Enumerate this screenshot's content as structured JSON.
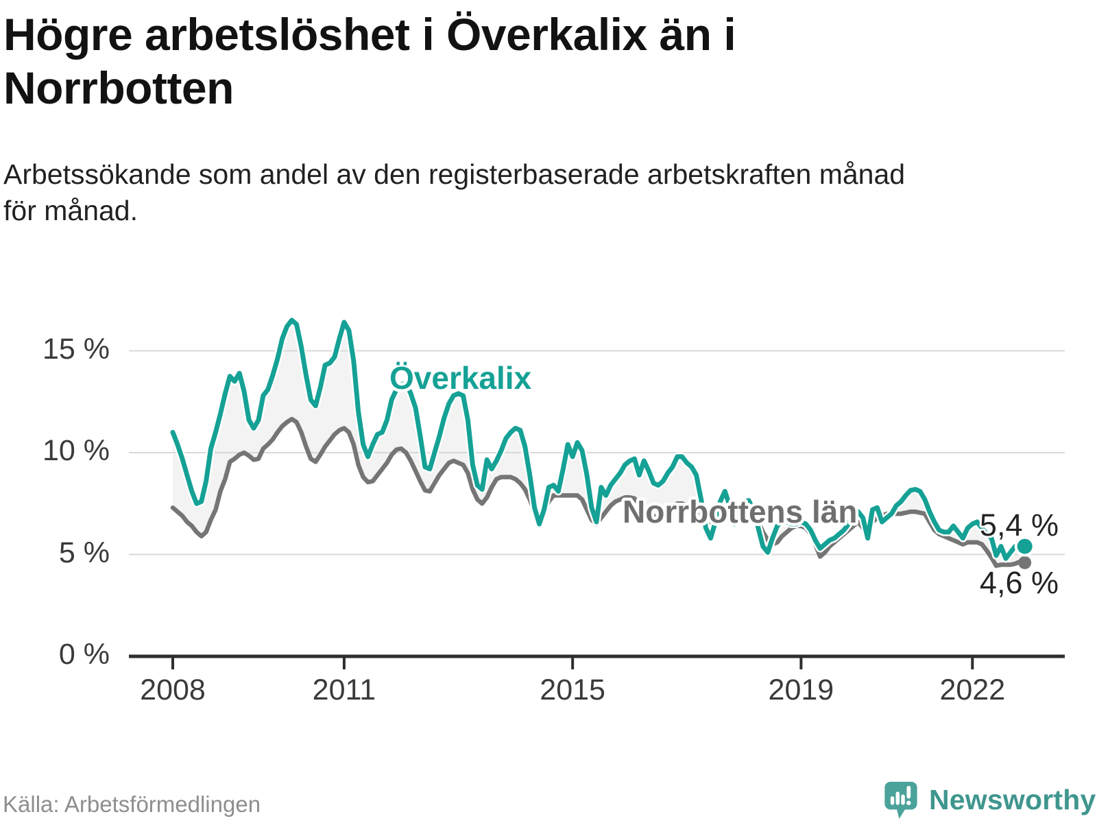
{
  "header": {
    "title": "Högre arbetslöshet i Överkalix än i\nNorrbotten",
    "subtitle": "Arbetssökande som andel av den registerbaserade arbetskraften månad\nför månad."
  },
  "footer": {
    "source": "Källa: Arbetsförmedlingen",
    "logo_text": "Newsworthy",
    "logo_icon": "speech-bubble-bar-chart-exclamation",
    "logo_icon_color": "#4aa29a",
    "logo_text_color": "#3f968e"
  },
  "chart_data": {
    "type": "line",
    "title": "Högre arbetslöshet i Överkalix än i Norrbotten",
    "subtitle": "Arbetssökande som andel av den registerbaserade arbetskraften månad för månad.",
    "unit": "%",
    "grid": "horizontal-only",
    "legend_position": "inline-labels",
    "x_domain": {
      "start": "2008-01",
      "end": "2022-12",
      "step": "month",
      "points": 180
    },
    "x_axis": {
      "ticks": [
        {
          "label": "2008",
          "month_index": 0
        },
        {
          "label": "2011",
          "month_index": 36
        },
        {
          "label": "2015",
          "month_index": 84
        },
        {
          "label": "2019",
          "month_index": 132
        },
        {
          "label": "2022",
          "month_index": 168
        }
      ]
    },
    "y_axis": {
      "range": [
        0,
        17.5
      ],
      "ticks": [
        {
          "value": 15,
          "label": "15 %"
        },
        {
          "value": 10,
          "label": "10 %"
        },
        {
          "value": 5,
          "label": "5 %"
        },
        {
          "value": 0,
          "label": "0 %"
        }
      ]
    },
    "area_between_fill": "#f3f3f3",
    "gridline_color": "#d9d9d9",
    "axis_color": "#2e2e2e",
    "series": [
      {
        "name": "Överkalix",
        "color": "#15a195",
        "end_label": "5,4 %",
        "end_value": 5.4,
        "values": [
          11.0,
          10.4,
          9.7,
          8.9,
          8.1,
          7.5,
          7.6,
          8.6,
          10.2,
          11.0,
          11.9,
          12.9,
          13.75,
          13.5,
          13.9,
          13.0,
          11.6,
          11.2,
          11.6,
          12.8,
          13.1,
          13.8,
          14.6,
          15.6,
          16.2,
          16.5,
          16.3,
          15.2,
          13.8,
          12.6,
          12.3,
          13.2,
          14.3,
          14.4,
          14.7,
          15.6,
          16.4,
          16.0,
          14.5,
          12.0,
          10.4,
          9.8,
          10.4,
          10.9,
          11.0,
          11.6,
          12.6,
          13.1,
          13.35,
          13.4,
          12.9,
          12.2,
          10.8,
          9.3,
          9.2,
          10.0,
          10.8,
          11.7,
          12.4,
          12.8,
          12.9,
          12.8,
          11.6,
          9.4,
          8.4,
          8.2,
          9.65,
          9.2,
          9.6,
          10.1,
          10.7,
          11.0,
          11.2,
          11.1,
          10.3,
          8.9,
          7.3,
          6.5,
          7.2,
          8.3,
          8.4,
          8.1,
          9.2,
          10.4,
          9.8,
          10.5,
          10.1,
          8.9,
          7.3,
          6.6,
          8.3,
          7.9,
          8.4,
          8.7,
          9.0,
          9.4,
          9.6,
          9.7,
          8.9,
          9.6,
          9.1,
          8.5,
          8.4,
          8.6,
          9.0,
          9.3,
          9.8,
          9.8,
          9.5,
          9.3,
          8.9,
          7.7,
          6.3,
          5.8,
          6.6,
          7.6,
          8.1,
          7.4,
          6.5,
          7.2,
          7.6,
          7.65,
          7.2,
          6.3,
          5.4,
          5.1,
          5.8,
          6.4,
          6.6,
          6.6,
          6.5,
          6.5,
          6.6,
          6.5,
          6.2,
          5.7,
          5.3,
          5.5,
          5.7,
          5.8,
          6.0,
          6.2,
          6.5,
          7.0,
          7.1,
          6.8,
          5.8,
          7.2,
          7.3,
          6.6,
          6.8,
          7.0,
          7.4,
          7.6,
          7.9,
          8.15,
          8.2,
          8.1,
          7.7,
          7.1,
          6.6,
          6.2,
          6.1,
          6.1,
          6.4,
          6.1,
          5.8,
          6.3,
          6.5,
          6.6,
          6.3,
          6.0,
          5.8,
          4.95,
          5.4,
          4.8,
          5.1,
          5.4,
          5.3,
          5.4
        ]
      },
      {
        "name": "Norrbottens län",
        "color": "#757575",
        "end_label": "4,6 %",
        "end_value": 4.6,
        "values": [
          7.3,
          7.1,
          6.9,
          6.6,
          6.4,
          6.1,
          5.9,
          6.1,
          6.7,
          7.2,
          8.1,
          8.7,
          9.55,
          9.7,
          9.9,
          10.0,
          9.85,
          9.65,
          9.7,
          10.2,
          10.4,
          10.65,
          11.0,
          11.3,
          11.5,
          11.65,
          11.5,
          11.0,
          10.3,
          9.7,
          9.55,
          9.9,
          10.3,
          10.6,
          10.9,
          11.1,
          11.2,
          11.0,
          10.4,
          9.4,
          8.8,
          8.55,
          8.6,
          8.9,
          9.2,
          9.5,
          9.9,
          10.15,
          10.2,
          10.0,
          9.6,
          9.1,
          8.6,
          8.15,
          8.1,
          8.5,
          8.9,
          9.2,
          9.5,
          9.6,
          9.5,
          9.4,
          9.0,
          8.2,
          7.7,
          7.5,
          7.8,
          8.3,
          8.7,
          8.8,
          8.8,
          8.8,
          8.7,
          8.5,
          8.2,
          7.7,
          7.1,
          6.85,
          7.2,
          7.6,
          7.9,
          7.9,
          7.9,
          7.9,
          7.9,
          7.9,
          7.7,
          7.2,
          6.7,
          6.5,
          6.8,
          7.1,
          7.4,
          7.6,
          7.7,
          7.8,
          7.8,
          7.75,
          7.5,
          7.3,
          7.0,
          6.85,
          6.9,
          7.1,
          7.3,
          7.4,
          7.5,
          7.5,
          7.4,
          7.3,
          7.2,
          7.0,
          6.7,
          6.6,
          6.7,
          6.9,
          7.0,
          7.0,
          7.0,
          7.1,
          7.2,
          7.2,
          7.0,
          6.6,
          6.1,
          5.7,
          5.5,
          5.6,
          5.9,
          6.1,
          6.3,
          6.4,
          6.4,
          6.3,
          6.0,
          5.5,
          4.9,
          5.1,
          5.4,
          5.6,
          5.8,
          6.0,
          6.2,
          6.4,
          6.6,
          6.3,
          6.1,
          6.6,
          6.8,
          6.9,
          7.0,
          7.0,
          7.0,
          7.0,
          7.05,
          7.1,
          7.1,
          7.05,
          7.0,
          6.6,
          6.2,
          6.0,
          5.9,
          5.8,
          5.7,
          5.6,
          5.5,
          5.6,
          5.6,
          5.6,
          5.5,
          5.2,
          4.85,
          4.45,
          4.5,
          4.5,
          4.5,
          4.55,
          4.65,
          4.6
        ]
      }
    ]
  }
}
